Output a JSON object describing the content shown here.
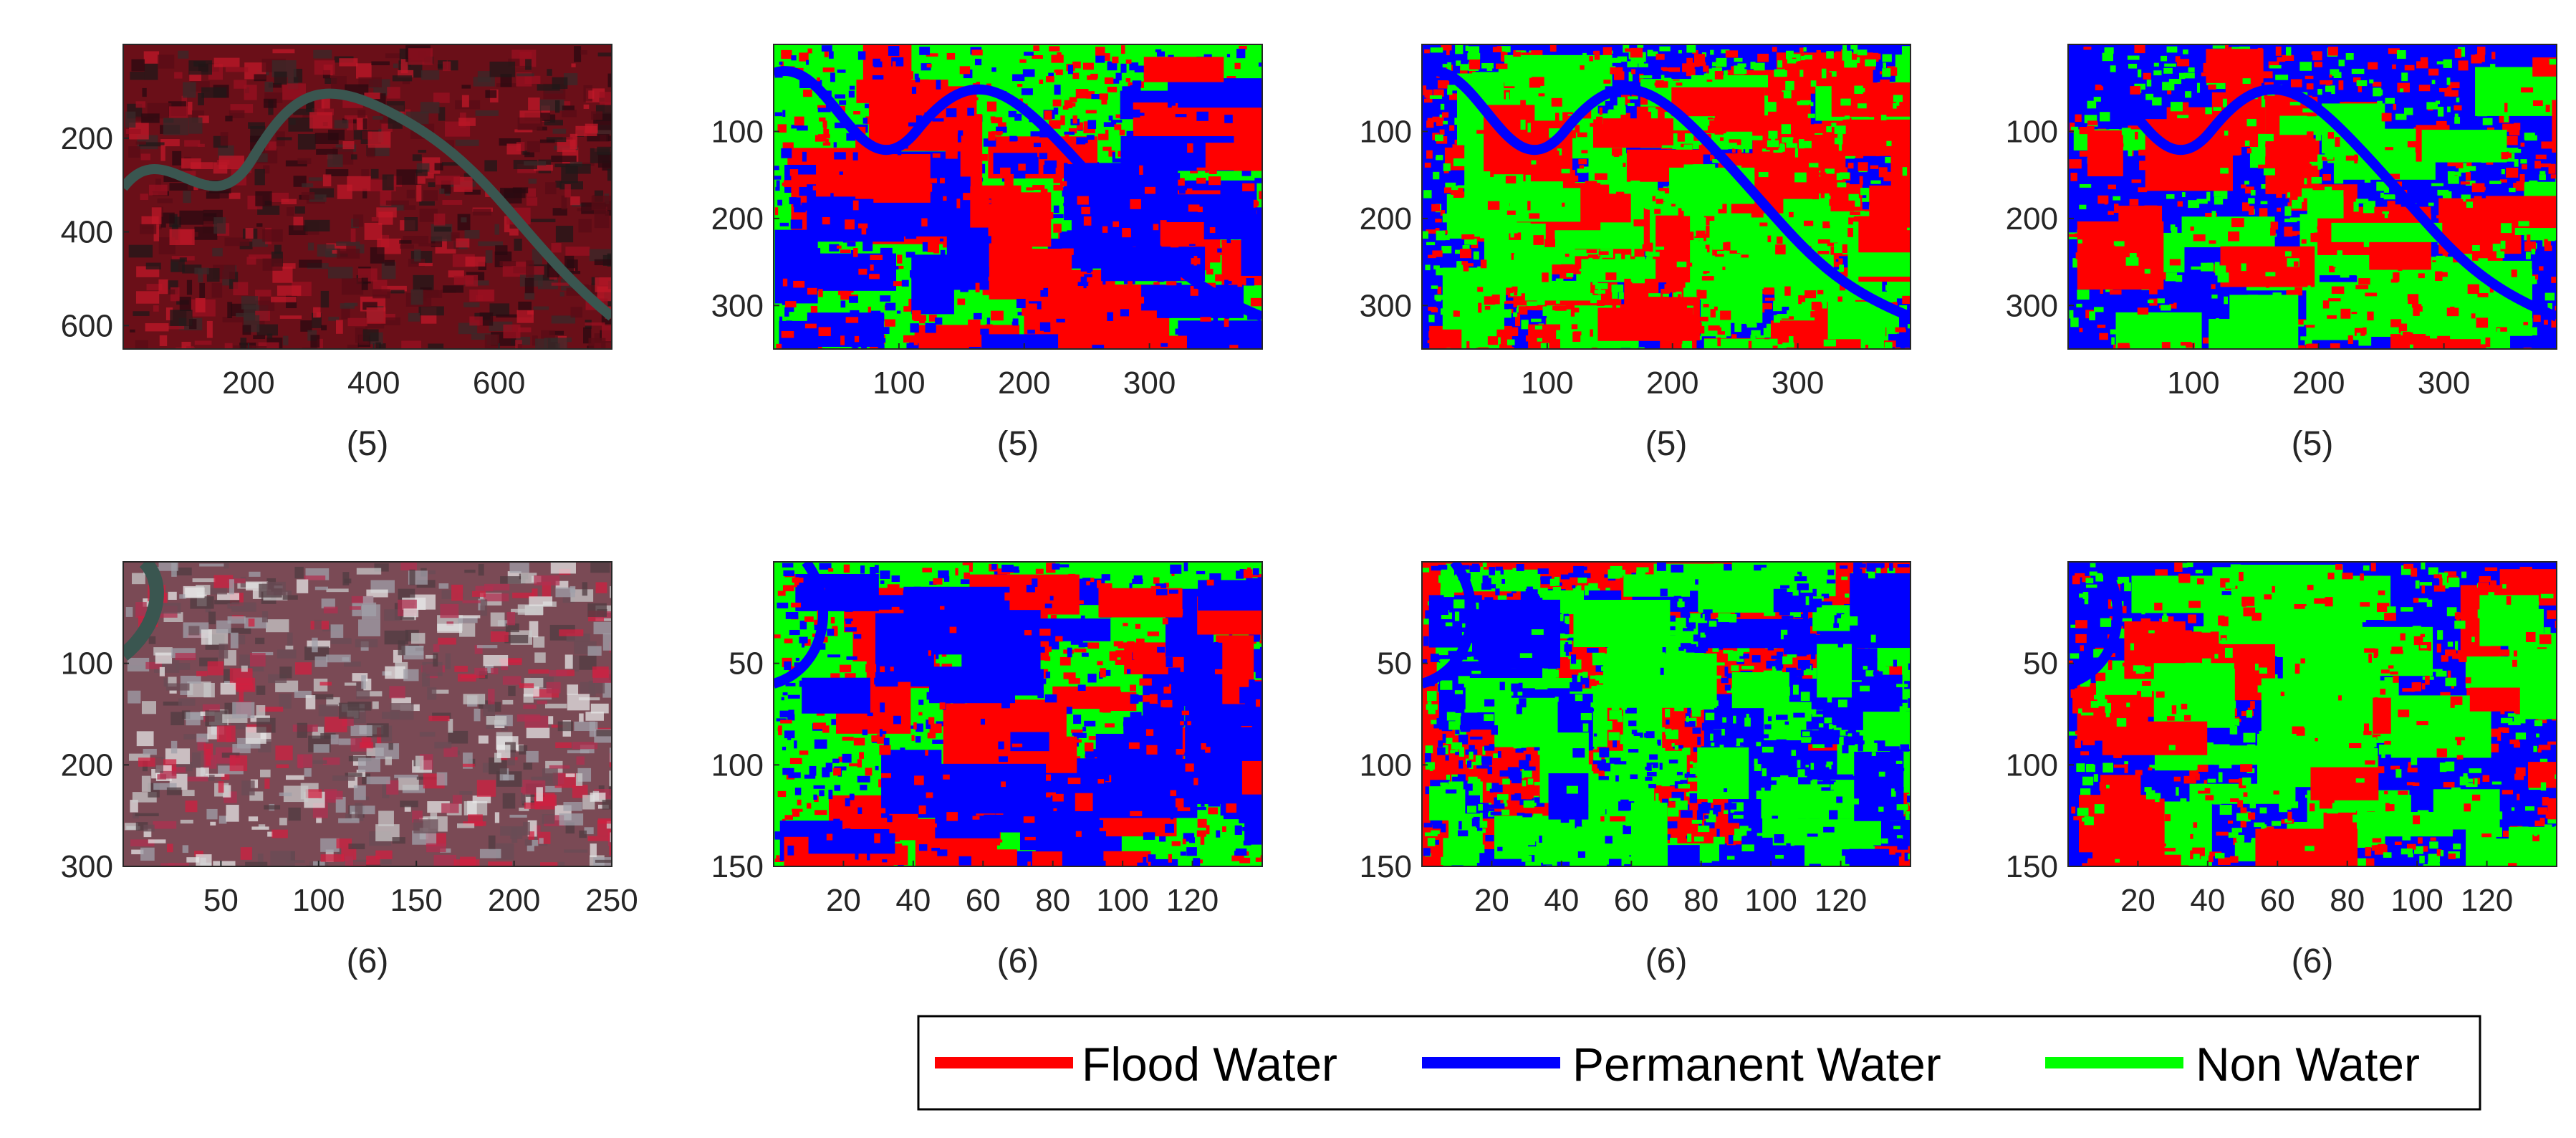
{
  "figure": {
    "legend": {
      "placement": "bottom-right",
      "entries": [
        {
          "label": "Flood Water",
          "color": "#ff0000"
        },
        {
          "label": "Permanent Water",
          "color": "#0000ff"
        },
        {
          "label": "Non Water",
          "color": "#00ff00"
        }
      ]
    },
    "colors": {
      "flood": "#ff0000",
      "permanent": "#0000ff",
      "non_water": "#00ff00"
    }
  },
  "chart_data": [
    {
      "type": "heatmap",
      "panel": "false-color-image",
      "caption": "(5)",
      "xlim": [
        0,
        780
      ],
      "ylim": [
        650,
        0
      ],
      "xticks": [
        200,
        400,
        600
      ],
      "yticks": [
        200,
        400,
        600
      ]
    },
    {
      "type": "heatmap",
      "panel": "classification-a",
      "caption": "(5)",
      "xlim": [
        0,
        390
      ],
      "ylim": [
        350,
        0
      ],
      "xticks": [
        100,
        200,
        300
      ],
      "yticks": [
        100,
        200,
        300
      ]
    },
    {
      "type": "heatmap",
      "panel": "classification-b",
      "caption": "(5)",
      "xlim": [
        0,
        390
      ],
      "ylim": [
        350,
        0
      ],
      "xticks": [
        100,
        200,
        300
      ],
      "yticks": [
        100,
        200,
        300
      ]
    },
    {
      "type": "heatmap",
      "panel": "classification-c",
      "caption": "(5)",
      "xlim": [
        0,
        390
      ],
      "ylim": [
        350,
        0
      ],
      "xticks": [
        100,
        200,
        300
      ],
      "yticks": [
        100,
        200,
        300
      ]
    },
    {
      "type": "heatmap",
      "panel": "false-color-image",
      "caption": "(6)",
      "xlim": [
        0,
        250
      ],
      "ylim": [
        300,
        0
      ],
      "xticks": [
        50,
        100,
        150,
        200,
        250
      ],
      "yticks": [
        100,
        200,
        300
      ]
    },
    {
      "type": "heatmap",
      "panel": "classification-a",
      "caption": "(6)",
      "xlim": [
        0,
        140
      ],
      "ylim": [
        150,
        0
      ],
      "xticks": [
        20,
        40,
        60,
        80,
        100,
        120
      ],
      "yticks": [
        50,
        100,
        150
      ]
    },
    {
      "type": "heatmap",
      "panel": "classification-b",
      "caption": "(6)",
      "xlim": [
        0,
        140
      ],
      "ylim": [
        150,
        0
      ],
      "xticks": [
        20,
        40,
        60,
        80,
        100,
        120
      ],
      "yticks": [
        50,
        100,
        150
      ]
    },
    {
      "type": "heatmap",
      "panel": "classification-c",
      "caption": "(6)",
      "xlim": [
        0,
        140
      ],
      "ylim": [
        150,
        0
      ],
      "xticks": [
        20,
        40,
        60,
        80,
        100,
        120
      ],
      "yticks": [
        50,
        100,
        150
      ]
    }
  ]
}
